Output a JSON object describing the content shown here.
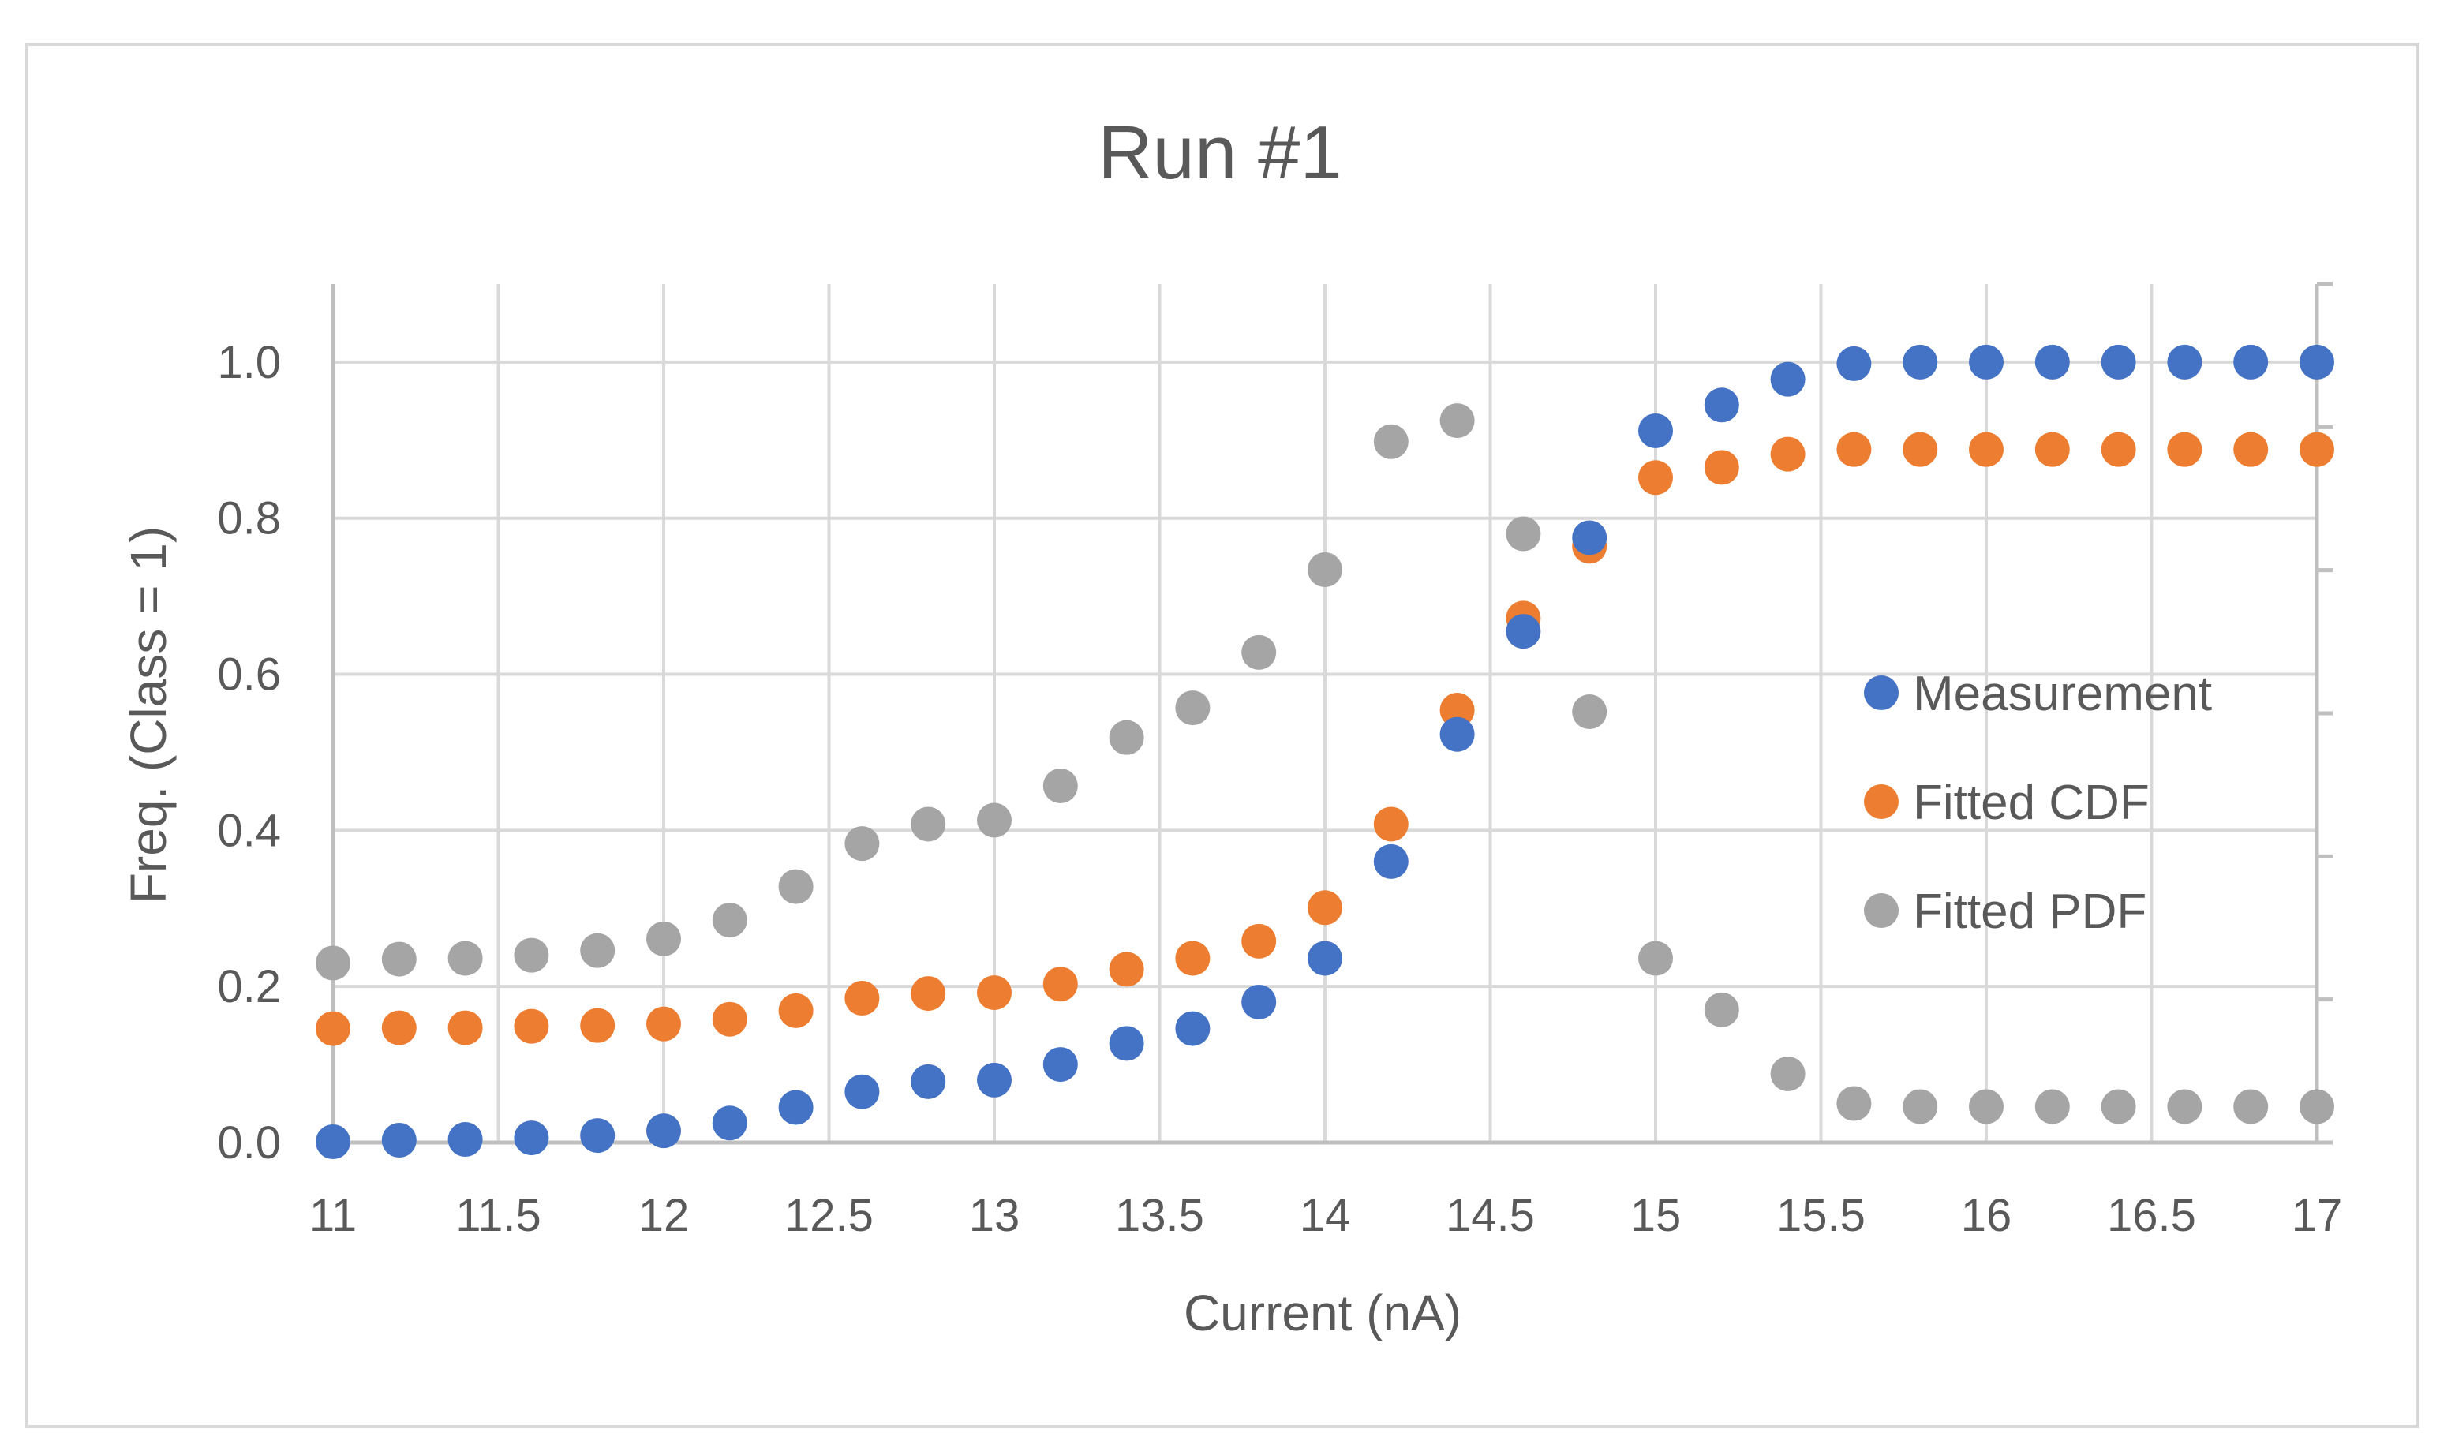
{
  "chart_data": {
    "type": "scatter",
    "title": "Run #1",
    "xlabel": "Current (nA)",
    "ylabel": "Freq. (Class = 1)",
    "xlim": [
      11,
      17
    ],
    "ylim": [
      0,
      1.1
    ],
    "x_ticks": [
      11,
      11.5,
      12,
      12.5,
      13,
      13.5,
      14,
      14.5,
      15,
      15.5,
      16,
      16.5,
      17
    ],
    "x_tick_labels": [
      "11",
      "11.5",
      "12",
      "12.5",
      "13",
      "13.5",
      "14",
      "14.5",
      "15",
      "15.5",
      "16",
      "16.5",
      "17"
    ],
    "y_ticks": [
      0,
      0.2,
      0.4,
      0.6,
      0.8,
      1.0
    ],
    "y_tick_labels": [
      "0.0",
      "0.2",
      "0.4",
      "0.6",
      "0.8",
      "1.0"
    ],
    "grid": true,
    "legend_position": "right",
    "x": [
      11.0,
      11.2,
      11.4,
      11.6,
      11.8,
      12.0,
      12.2,
      12.4,
      12.6,
      12.8,
      13.0,
      13.2,
      13.4,
      13.6,
      13.8,
      14.0,
      14.2,
      14.4,
      14.6,
      14.8,
      15.0,
      15.2,
      15.4,
      15.6,
      15.8,
      16.0,
      16.2,
      16.4,
      16.6,
      16.8,
      17.0
    ],
    "series": [
      {
        "name": "Measurement",
        "color": "#4472c4",
        "values": [
          0.001,
          0.003,
          0.004,
          0.006,
          0.009,
          0.015,
          0.025,
          0.045,
          0.065,
          0.078,
          0.08,
          0.1,
          0.127,
          0.146,
          0.18,
          0.236,
          0.36,
          0.523,
          0.655,
          0.775,
          0.912,
          0.945,
          0.978,
          0.998,
          1.0,
          1.0,
          1.0,
          1.0,
          1.0,
          1.0,
          1.0
        ]
      },
      {
        "name": "Fitted CDF",
        "color": "#ed7d31",
        "values": [
          0.146,
          0.147,
          0.147,
          0.149,
          0.15,
          0.152,
          0.158,
          0.169,
          0.185,
          0.191,
          0.192,
          0.203,
          0.222,
          0.236,
          0.258,
          0.301,
          0.408,
          0.554,
          0.672,
          0.764,
          0.852,
          0.865,
          0.882,
          0.888,
          0.888,
          0.888,
          0.888,
          0.888,
          0.888,
          0.888,
          0.888
        ]
      },
      {
        "name": "Fitted PDF",
        "color": "#a5a5a5",
        "values": [
          0.23,
          0.235,
          0.236,
          0.24,
          0.246,
          0.261,
          0.285,
          0.328,
          0.383,
          0.408,
          0.413,
          0.457,
          0.519,
          0.557,
          0.628,
          0.734,
          0.898,
          0.925,
          0.78,
          0.552,
          0.236,
          0.17,
          0.088,
          0.05,
          0.046,
          0.046,
          0.046,
          0.046,
          0.046,
          0.046,
          0.046
        ]
      }
    ]
  }
}
